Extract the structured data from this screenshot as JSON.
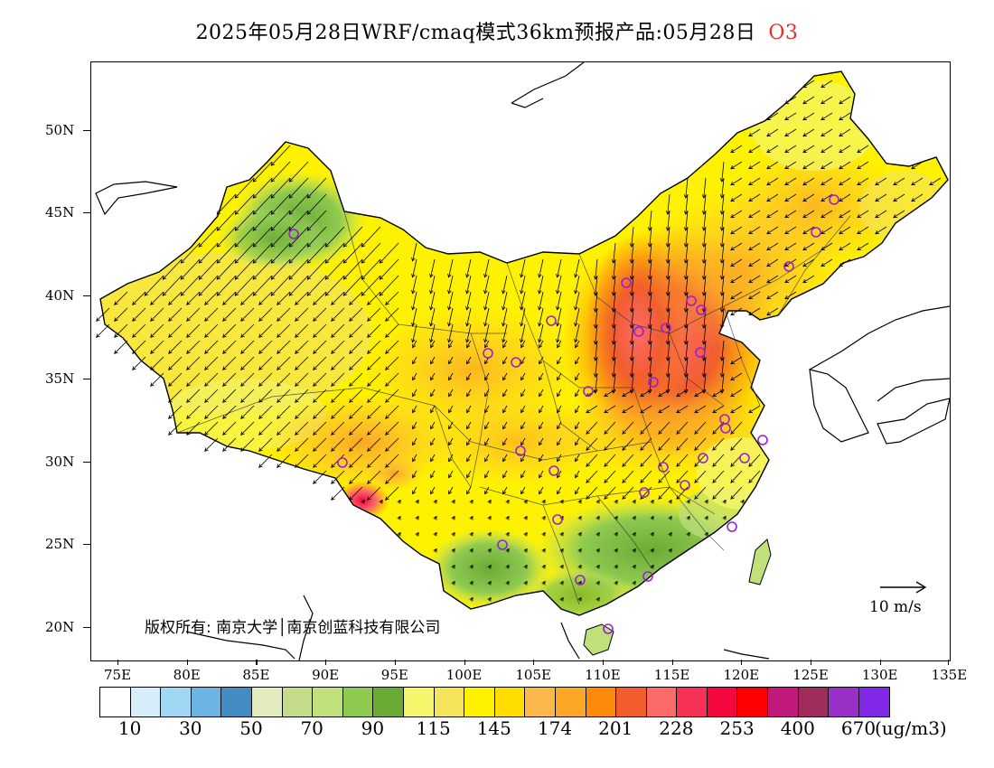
{
  "title": {
    "main": "2025年05月28日WRF/cmaq模式36km预报产品:05月28日",
    "species": "O3",
    "species_color": "#e0302a"
  },
  "map": {
    "lon_range": [
      73,
      135
    ],
    "lat_range": [
      18,
      54
    ],
    "lat_labels": [
      "20N",
      "25N",
      "30N",
      "35N",
      "40N",
      "45N",
      "50N"
    ],
    "lon_labels": [
      "75E",
      "80E",
      "85E",
      "90E",
      "95E",
      "100E",
      "105E",
      "110E",
      "115E",
      "120E",
      "125E",
      "130E",
      "135E"
    ],
    "copyright": "版权所有: 南京大学│南京创蓝科技有限公司",
    "wind_scale_label": "10 m/s"
  },
  "colorbar": {
    "colors": [
      "#ffffff",
      "#d6eefa",
      "#a0d7f4",
      "#6bb3e0",
      "#438cc4",
      "#e2ecbf",
      "#c4dc8a",
      "#bfe07a",
      "#8fca50",
      "#6aab35",
      "#f4f56a",
      "#f5e35a",
      "#fff200",
      "#ffdd00",
      "#fdb84b",
      "#fca726",
      "#fd8a0a",
      "#f15d2d",
      "#fc6a6a",
      "#f73256",
      "#f5083f",
      "#ff0000",
      "#c2197d",
      "#a02c5e",
      "#9b30c9",
      "#8228e6"
    ],
    "labels": [
      "10",
      "30",
      "50",
      "70",
      "90",
      "115",
      "145",
      "174",
      "201",
      "228",
      "253",
      "400",
      "670"
    ],
    "unit": "(ug/m3)"
  }
}
